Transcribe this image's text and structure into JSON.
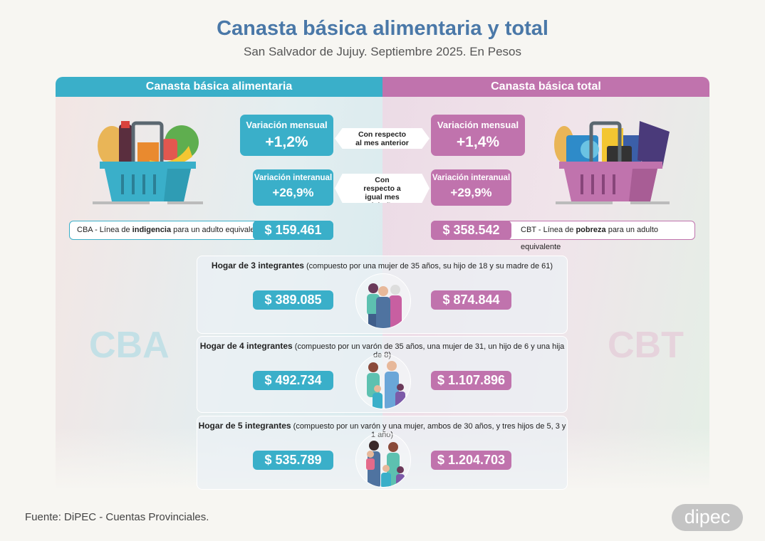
{
  "header": {
    "title": "Canasta básica alimentaria y total",
    "subtitle": "San Salvador de Jujuy. Septiembre 2025. En Pesos"
  },
  "colors": {
    "cba": "#3aafc9",
    "cbt": "#c073ad",
    "title": "#4a78a8"
  },
  "cba": {
    "section_title": "Canasta básica alimentaria",
    "monthly_label": "Variación mensual",
    "monthly_value": "+1,2%",
    "yearly_label": "Variación interanual",
    "yearly_value": "+26,9%",
    "line_prefix": "CBA - Línea de ",
    "line_bold": "indigencia",
    "line_suffix": " para un adulto equivalente",
    "adult_value": "$ 159.461",
    "watermark": "CBA",
    "illustration": "food-basket-icon"
  },
  "cbt": {
    "section_title": "Canasta básica total",
    "monthly_label": "Variación mensual",
    "monthly_value": "+1,4%",
    "yearly_label": "Variación interanual",
    "yearly_value": "+29,9%",
    "line_prefix": "CBT - Línea de ",
    "line_bold": "pobreza",
    "line_suffix": " para un adulto equivalente",
    "adult_value": "$ 358.542",
    "watermark": "CBT",
    "illustration": "goods-basket-icon"
  },
  "notes": {
    "monthly": "Con respecto al mes anterior",
    "yearly": "Con respecto a igual mes del año anterior"
  },
  "households": [
    {
      "title": "Hogar de 3 integrantes",
      "detail": " (compuesto por una mujer de 35 años, su hijo de 18 y su madre de 61)",
      "cba": "$ 389.085",
      "cbt": "$ 874.844"
    },
    {
      "title": "Hogar de 4 integrantes",
      "detail": " (compuesto por un varón de 35 años, una mujer de 31, un hijo de 6 y una hija de 8)",
      "cba": "$ 492.734",
      "cbt": "$ 1.107.896"
    },
    {
      "title": "Hogar de 5 integrantes",
      "detail": " (compuesto por un varón y una mujer, ambos de 30 años, y tres hijos de 5, 3 y 1 año)",
      "cba": "$ 535.789",
      "cbt": "$ 1.204.703"
    }
  ],
  "footer": {
    "source": "Fuente: DiPEC - Cuentas Provinciales.",
    "logo": "dipec"
  }
}
